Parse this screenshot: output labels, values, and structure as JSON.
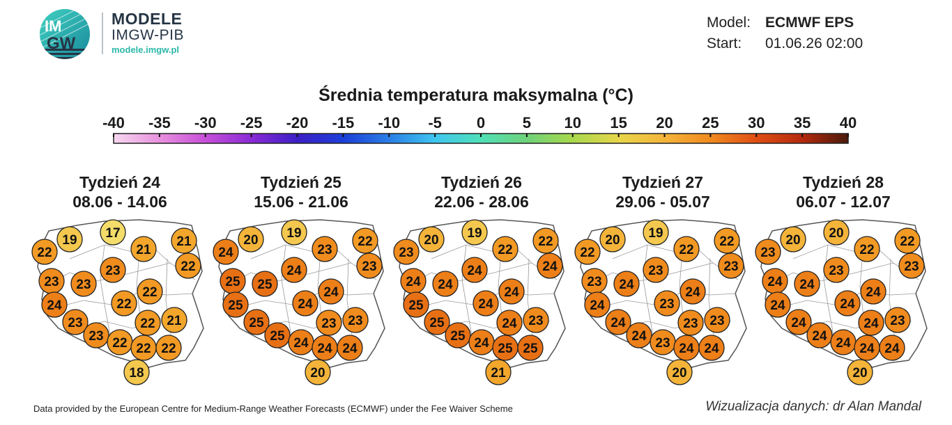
{
  "header": {
    "logo_text_top": "IM",
    "logo_text_bottom": "GW",
    "brand_title": "MODELE",
    "brand_sub": "IMGW-PIB",
    "brand_url": "modele.imgw.pl",
    "model_label": "Model:",
    "model_value": "ECMWF EPS",
    "start_label": "Start:",
    "start_value": "01.06.26 02:00"
  },
  "title": "Średnia temperatura maksymalna (°C)",
  "colorbar": {
    "ticks": [
      "-40",
      "-35",
      "-30",
      "-25",
      "-20",
      "-15",
      "-10",
      "-5",
      "0",
      "5",
      "10",
      "15",
      "20",
      "25",
      "30",
      "35",
      "40"
    ],
    "colors": [
      "#f6d8ef",
      "#e890de",
      "#c64fd8",
      "#8a2bd6",
      "#3c1fc6",
      "#1c3fd8",
      "#2a7ee6",
      "#3fc6f0",
      "#4fe0b8",
      "#6fd27a",
      "#a8d84c",
      "#e8d64a",
      "#f4b43a",
      "#f08a1e",
      "#e04e14",
      "#b42a0e",
      "#4a1a0c"
    ]
  },
  "weeks": [
    {
      "name": "Tydzień 24",
      "dates": "08.06 - 14.06",
      "values": [
        22,
        19,
        17,
        21,
        21,
        22,
        23,
        23,
        23,
        22,
        24,
        22,
        23,
        22,
        21,
        23,
        22,
        22,
        22,
        18
      ]
    },
    {
      "name": "Tydzień 25",
      "dates": "15.06 - 21.06",
      "values": [
        24,
        20,
        19,
        23,
        22,
        23,
        25,
        25,
        24,
        24,
        25,
        24,
        25,
        23,
        23,
        25,
        24,
        24,
        24,
        20
      ]
    },
    {
      "name": "Tydzień 26",
      "dates": "22.06 - 28.06",
      "values": [
        23,
        20,
        19,
        22,
        22,
        24,
        24,
        24,
        24,
        24,
        25,
        24,
        25,
        24,
        23,
        25,
        24,
        25,
        25,
        21
      ]
    },
    {
      "name": "Tydzień 27",
      "dates": "29.06 - 05.07",
      "values": [
        22,
        20,
        19,
        22,
        22,
        23,
        23,
        24,
        23,
        24,
        24,
        23,
        24,
        23,
        23,
        24,
        23,
        24,
        24,
        20
      ]
    },
    {
      "name": "Tydzień 28",
      "dates": "06.07 - 12.07",
      "values": [
        23,
        20,
        20,
        22,
        22,
        23,
        24,
        24,
        23,
        24,
        24,
        24,
        24,
        24,
        23,
        24,
        24,
        24,
        24,
        20
      ]
    }
  ],
  "footer": {
    "source": "Data provided by the European Centre for Medium-Range Weather Forecasts (ECMWF) under the Fee Waiver Scheme",
    "credit": "Wizualizacja danych: dr Alan Mandal"
  }
}
